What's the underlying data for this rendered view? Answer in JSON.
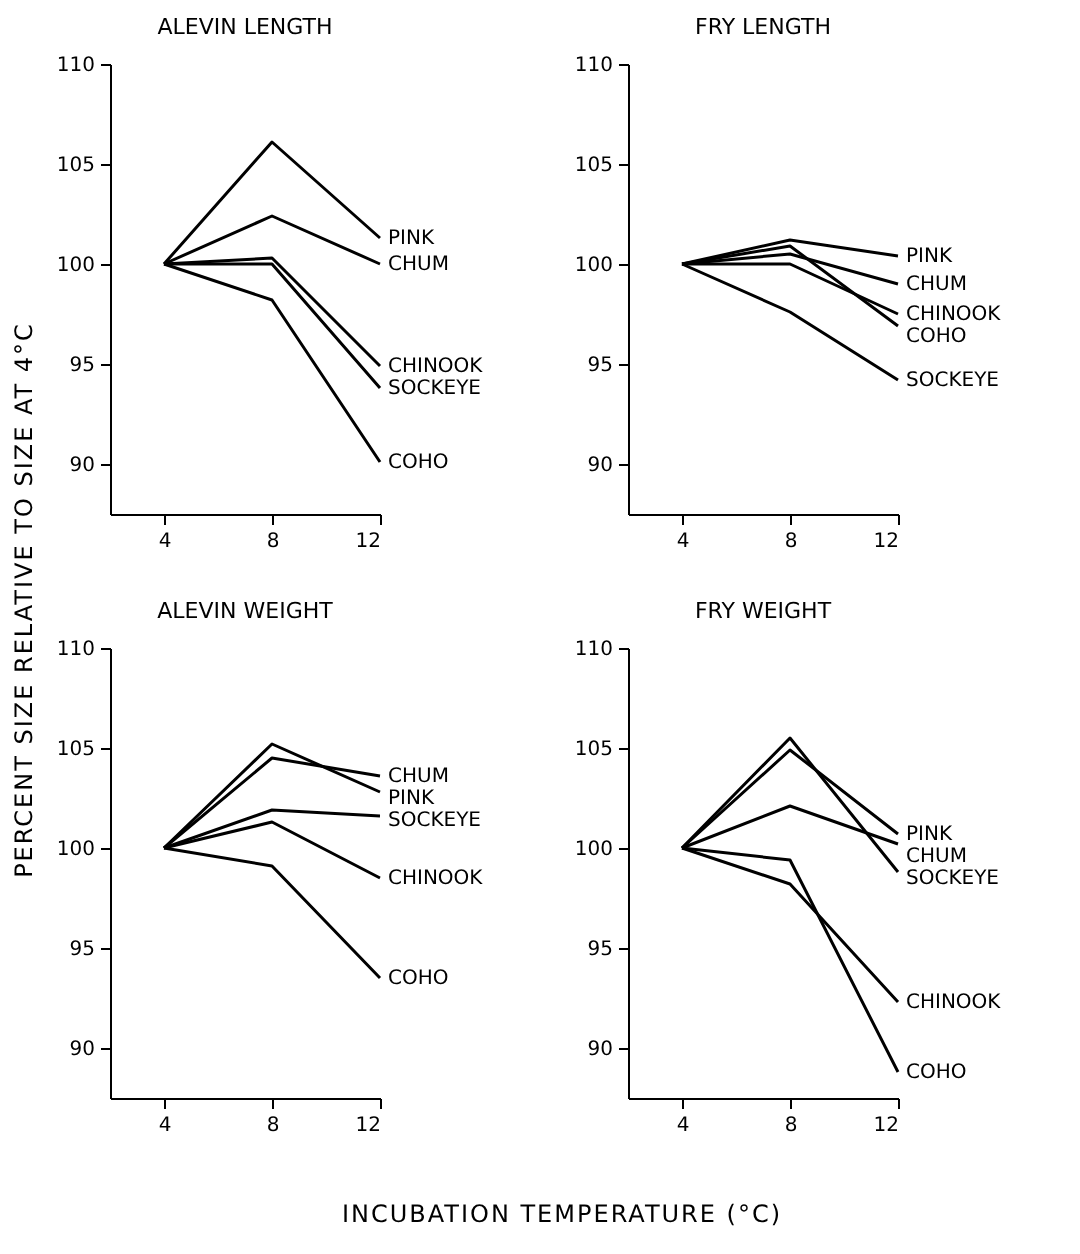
{
  "chart_data": [
    {
      "type": "line",
      "title": "ALEVIN LENGTH",
      "ylabel": "PERCENT SIZE RELATIVE TO SIZE AT 4°C",
      "x": [
        4,
        8,
        12
      ],
      "xlim": [
        2,
        12
      ],
      "xticks": [
        4,
        8,
        12
      ],
      "ylim": [
        87.5,
        110
      ],
      "yticks": [
        90,
        95,
        100,
        105,
        110
      ],
      "series": [
        {
          "name": "PINK",
          "color": "#000000",
          "values": [
            100,
            106.1,
            101.3
          ]
        },
        {
          "name": "CHUM",
          "color": "#000000",
          "values": [
            100,
            102.4,
            100
          ]
        },
        {
          "name": "CHINOOK",
          "color": "#000000",
          "values": [
            100,
            100.3,
            94.9
          ]
        },
        {
          "name": "SOCKEYE",
          "color": "#000000",
          "values": [
            100,
            100,
            93.8
          ]
        },
        {
          "name": "COHO",
          "color": "#000000",
          "values": [
            100,
            98.2,
            90.1
          ]
        }
      ]
    },
    {
      "type": "line",
      "title": "FRY LENGTH",
      "x": [
        4,
        8,
        12
      ],
      "xlim": [
        2,
        12
      ],
      "xticks": [
        4,
        8,
        12
      ],
      "ylim": [
        87.5,
        110
      ],
      "yticks": [
        90,
        95,
        100,
        105,
        110
      ],
      "series": [
        {
          "name": "PINK",
          "color": "#000000",
          "values": [
            100,
            101.2,
            100.4
          ]
        },
        {
          "name": "CHUM",
          "color": "#000000",
          "values": [
            100,
            100.5,
            99
          ]
        },
        {
          "name": "CHINOOK",
          "color": "#000000",
          "values": [
            100,
            100,
            97.5
          ]
        },
        {
          "name": "COHO",
          "color": "#000000",
          "values": [
            100,
            100.9,
            96.9
          ]
        },
        {
          "name": "SOCKEYE",
          "color": "#000000",
          "values": [
            100,
            97.6,
            94.2
          ]
        }
      ]
    },
    {
      "type": "line",
      "title": "ALEVIN WEIGHT",
      "xlabel": "INCUBATION TEMPERATURE (°C)",
      "x": [
        4,
        8,
        12
      ],
      "xlim": [
        2,
        12
      ],
      "xticks": [
        4,
        8,
        12
      ],
      "ylim": [
        87.5,
        110
      ],
      "yticks": [
        90,
        95,
        100,
        105,
        110
      ],
      "series": [
        {
          "name": "CHUM",
          "color": "#000000",
          "values": [
            100,
            104.5,
            103.6
          ]
        },
        {
          "name": "PINK",
          "color": "#000000",
          "values": [
            100,
            105.2,
            102.8
          ]
        },
        {
          "name": "SOCKEYE",
          "color": "#000000",
          "values": [
            100,
            101.9,
            101.6
          ]
        },
        {
          "name": "CHINOOK",
          "color": "#000000",
          "values": [
            100,
            101.3,
            98.5
          ]
        },
        {
          "name": "COHO",
          "color": "#000000",
          "values": [
            100,
            99.1,
            93.5
          ]
        }
      ]
    },
    {
      "type": "line",
      "title": "FRY WEIGHT",
      "x": [
        4,
        8,
        12
      ],
      "xlim": [
        2,
        12
      ],
      "xticks": [
        4,
        8,
        12
      ],
      "ylim": [
        87.5,
        110
      ],
      "yticks": [
        90,
        95,
        100,
        105,
        110
      ],
      "series": [
        {
          "name": "PINK",
          "color": "#000000",
          "values": [
            100,
            104.9,
            100.7
          ]
        },
        {
          "name": "CHUM",
          "color": "#000000",
          "values": [
            100,
            102.1,
            100.2
          ]
        },
        {
          "name": "SOCKEYE",
          "color": "#000000",
          "values": [
            100,
            105.5,
            98.8
          ]
        },
        {
          "name": "CHINOOK",
          "color": "#000000",
          "values": [
            100,
            98.2,
            92.3
          ]
        },
        {
          "name": "COHO",
          "color": "#000000",
          "values": [
            100,
            99.4,
            88.8
          ]
        }
      ]
    }
  ]
}
